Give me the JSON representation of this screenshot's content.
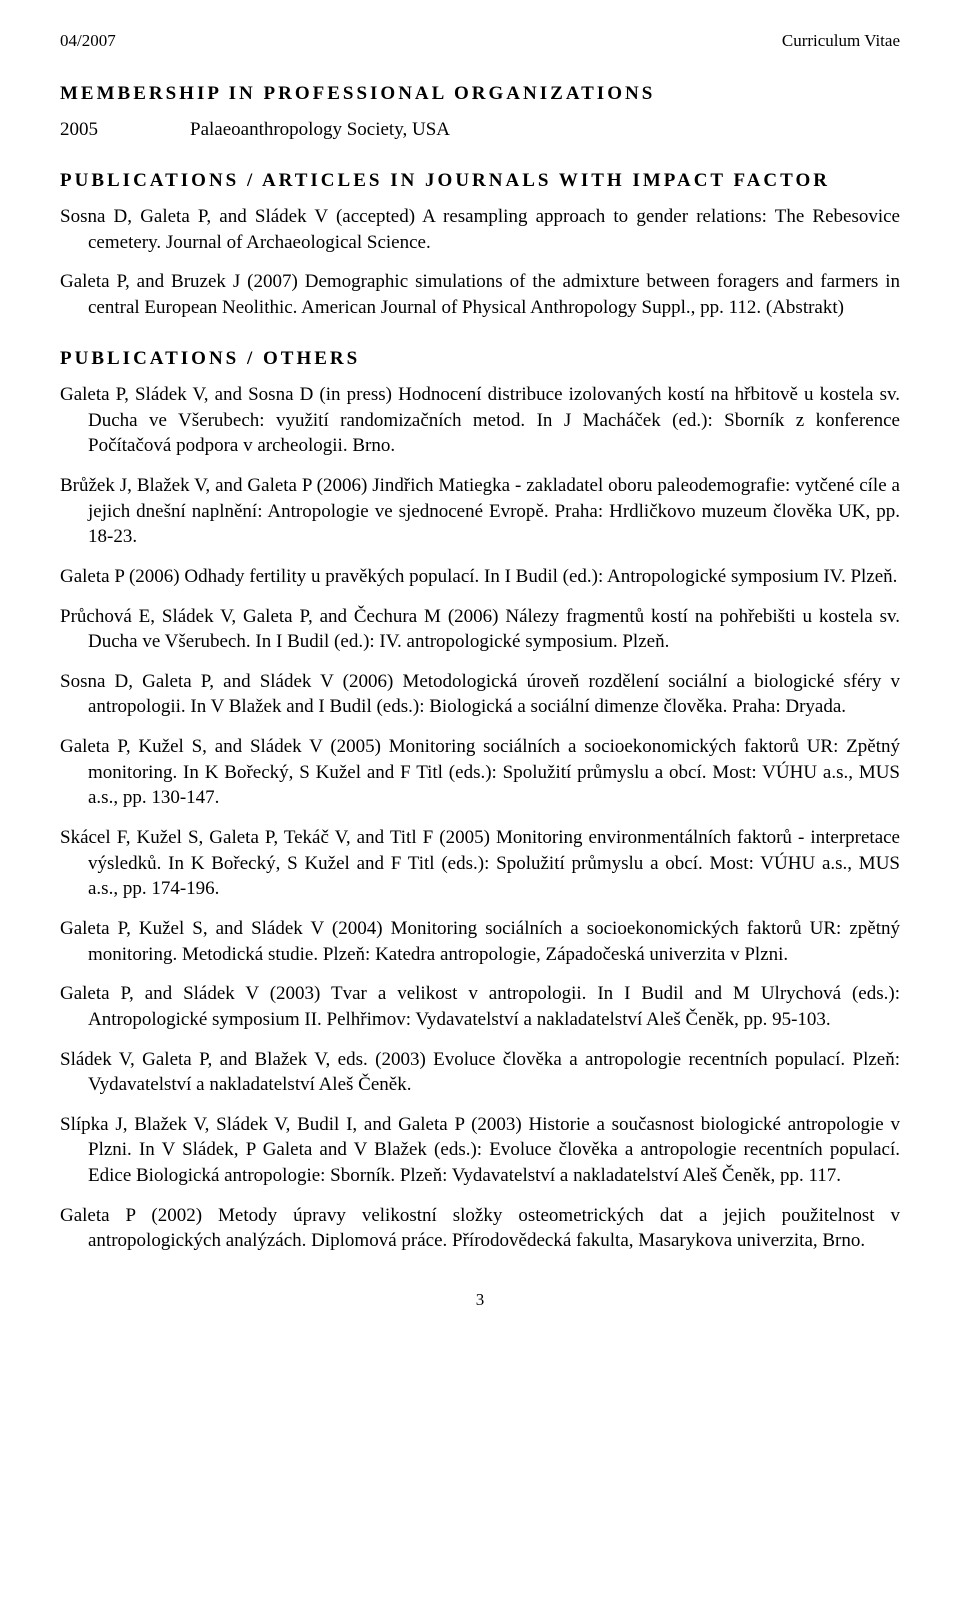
{
  "header": {
    "date": "04/2007",
    "title": "Curriculum Vitae"
  },
  "sections": {
    "membership_heading": "MEMBERSHIP IN PROFESSIONAL ORGANIZATIONS",
    "membership_year": "2005",
    "membership_org": "Palaeoanthropology Society, USA",
    "impact_heading": "PUBLICATIONS / ARTICLES IN JOURNALS WITH IMPACT FACTOR",
    "impact_pubs": [
      "Sosna D, Galeta P, and Sládek V (accepted) A resampling approach to gender relations: The Rebesovice cemetery. Journal of Archaeological Science.",
      "Galeta P, and Bruzek J (2007) Demographic simulations of the admixture between foragers and farmers in central European Neolithic. American Journal of Physical Anthropology Suppl., pp. 112. (Abstrakt)"
    ],
    "others_heading": "PUBLICATIONS / OTHERS",
    "other_pubs": [
      "Galeta P, Sládek V, and Sosna D (in press) Hodnocení distribuce izolovaných kostí na hřbitově u kostela sv. Ducha ve Všerubech: využití randomizačních metod. In J Macháček (ed.): Sborník z konference Počítačová podpora v archeologii. Brno.",
      "Brůžek J, Blažek V, and Galeta P (2006) Jindřich Matiegka - zakladatel oboru paleodemografie: vytčené cíle a jejich dnešní naplnění: Antropologie ve sjednocené Evropě. Praha: Hrdličkovo muzeum člověka UK, pp. 18-23.",
      "Galeta P (2006) Odhady fertility u pravěkých populací. In I Budil (ed.): Antropologické symposium IV. Plzeň.",
      "Průchová E, Sládek V, Galeta P, and Čechura M (2006) Nálezy fragmentů kostí na pohřebišti u kostela sv. Ducha ve Všerubech. In I Budil (ed.): IV. antropologické symposium. Plzeň.",
      "Sosna D, Galeta P, and Sládek V (2006) Metodologická úroveň rozdělení sociální a biologické sféry v antropologii. In V Blažek and I Budil (eds.): Biologická a sociální dimenze člověka. Praha: Dryada.",
      "Galeta P, Kužel S, and Sládek V (2005) Monitoring sociálních a socioekonomických faktorů UR: Zpětný monitoring. In K Bořecký, S Kužel and F Titl (eds.): Spolužití průmyslu a obcí. Most: VÚHU a.s., MUS a.s., pp. 130-147.",
      "Skácel F, Kužel S, Galeta P, Tekáč V, and Titl F (2005) Monitoring environmentálních faktorů - interpretace výsledků. In K Bořecký, S Kužel and F Titl (eds.): Spolužití průmyslu a obcí. Most: VÚHU a.s., MUS a.s., pp. 174-196.",
      "Galeta P, Kužel S, and Sládek V (2004) Monitoring sociálních a socioekonomických faktorů UR: zpětný monitoring. Metodická studie. Plzeň: Katedra antropologie, Západočeská univerzita v Plzni.",
      "Galeta P, and Sládek V (2003) Tvar a velikost v antropologii. In I Budil and M Ulrychová (eds.): Antropologické symposium II. Pelhřimov: Vydavatelství a nakladatelství Aleš Čeněk, pp. 95-103.",
      "Sládek V, Galeta P, and Blažek V, eds. (2003) Evoluce člověka a antropologie recentních populací. Plzeň: Vydavatelství a nakladatelství Aleš Čeněk.",
      "Slípka J, Blažek V, Sládek V, Budil I, and Galeta P (2003) Historie a současnost biologické antropologie v Plzni. In V Sládek, P Galeta and V Blažek (eds.): Evoluce člověka a antropologie recentních populací. Edice Biologická antropologie: Sborník. Plzeň: Vydavatelství a nakladatelství Aleš Čeněk, pp. 117.",
      "Galeta P (2002) Metody úpravy velikostní složky osteometrických dat a jejich použitelnost v antropologických analýzách. Diplomová práce. Přírodovědecká fakulta, Masarykova univerzita, Brno."
    ]
  },
  "page_number": "3"
}
